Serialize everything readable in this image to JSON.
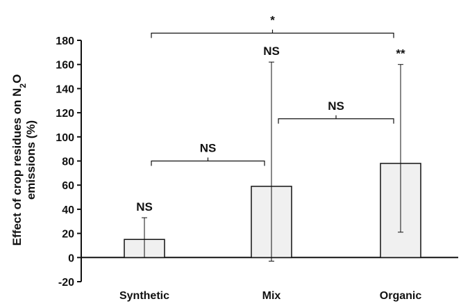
{
  "chart_data": {
    "type": "bar",
    "title": "",
    "xlabel": "",
    "ylabel": {
      "main": "Effect of crop residues on N",
      "subscript": "2",
      "after": "O",
      "line2": "emissions (%)"
    },
    "ylim": [
      -20,
      180
    ],
    "yticks": [
      -20,
      0,
      20,
      40,
      60,
      80,
      100,
      120,
      140,
      160,
      180
    ],
    "categories": [
      "Synthetic",
      "Mix",
      "Organic"
    ],
    "values": [
      15,
      59,
      78
    ],
    "error_low": [
      0,
      -3,
      21
    ],
    "error_high": [
      33,
      162,
      160
    ],
    "bar_labels": [
      "NS",
      "NS",
      "**"
    ],
    "brackets": [
      {
        "from": 0,
        "to": 1,
        "y": 80,
        "label": "NS"
      },
      {
        "from": 1,
        "to": 2,
        "y": 115,
        "label": "NS"
      },
      {
        "from": 0,
        "to": 2,
        "y": 186,
        "label": "*"
      }
    ],
    "bar_color": "#f0f0f0",
    "edge_color": "#111111",
    "grid": false
  }
}
